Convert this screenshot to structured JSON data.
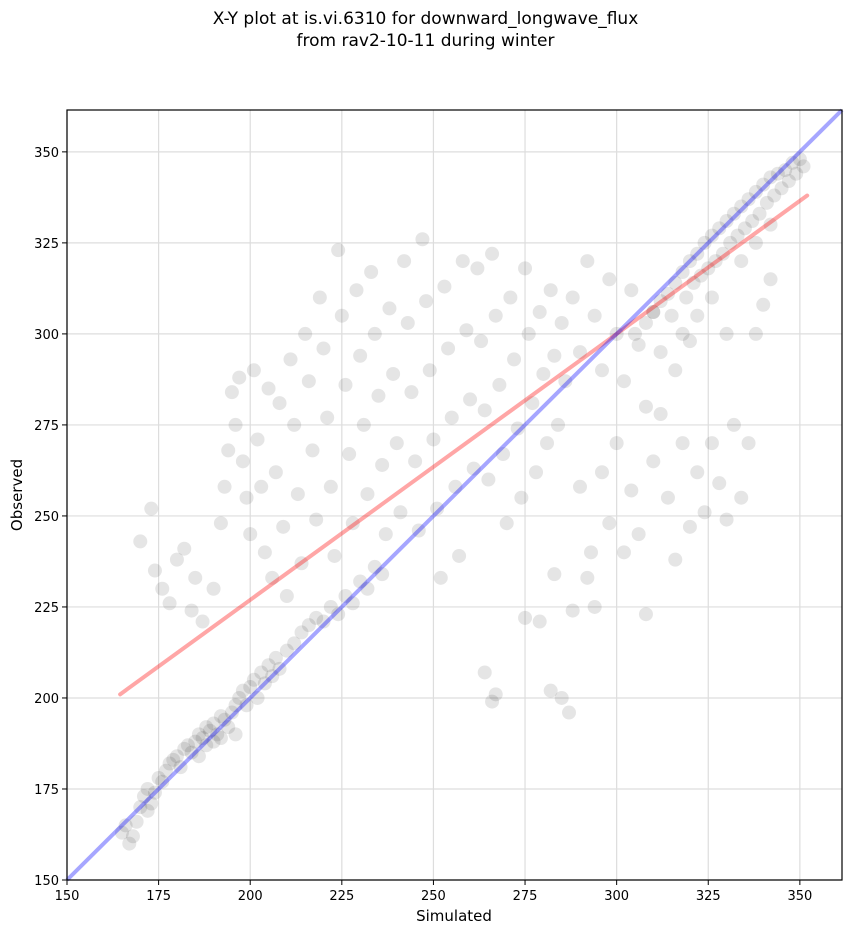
{
  "chart_data": {
    "type": "scatter",
    "title_line1": "X-Y plot at is.vi.6310 for downward_longwave_flux",
    "title_line2": "from rav2-10-11 during winter",
    "xlabel": "Simulated",
    "ylabel": "Observed",
    "xlim": [
      150,
      361.5
    ],
    "ylim": [
      150,
      361.5
    ],
    "xticks": [
      150,
      175,
      200,
      225,
      250,
      275,
      300,
      325,
      350
    ],
    "yticks": [
      150,
      175,
      200,
      225,
      250,
      275,
      300,
      325,
      350
    ],
    "grid": true,
    "point_color": "#000000",
    "one_to_one_line": {
      "color": "#0000ff",
      "from": [
        150,
        150
      ],
      "to": [
        361.5,
        361.5
      ]
    },
    "fit_line": {
      "color": "#ff0000",
      "from": [
        164.5,
        201
      ],
      "to": [
        352,
        338
      ]
    },
    "points": [
      [
        165,
        163
      ],
      [
        166,
        165
      ],
      [
        167,
        160
      ],
      [
        168,
        162
      ],
      [
        169,
        166
      ],
      [
        170,
        170
      ],
      [
        171,
        173
      ],
      [
        172,
        175
      ],
      [
        172,
        169
      ],
      [
        173,
        171
      ],
      [
        174,
        174
      ],
      [
        175,
        178
      ],
      [
        176,
        177
      ],
      [
        177,
        180
      ],
      [
        178,
        182
      ],
      [
        179,
        183
      ],
      [
        180,
        184
      ],
      [
        181,
        181
      ],
      [
        182,
        186
      ],
      [
        183,
        187
      ],
      [
        184,
        185
      ],
      [
        185,
        188
      ],
      [
        186,
        190
      ],
      [
        186,
        184
      ],
      [
        187,
        189
      ],
      [
        188,
        192
      ],
      [
        188,
        187
      ],
      [
        189,
        191
      ],
      [
        190,
        193
      ],
      [
        190,
        188
      ],
      [
        191,
        190
      ],
      [
        192,
        195
      ],
      [
        192,
        189
      ],
      [
        193,
        194
      ],
      [
        194,
        192
      ],
      [
        195,
        196
      ],
      [
        196,
        198
      ],
      [
        196,
        190
      ],
      [
        197,
        200
      ],
      [
        198,
        202
      ],
      [
        199,
        198
      ],
      [
        200,
        203
      ],
      [
        201,
        205
      ],
      [
        202,
        200
      ],
      [
        203,
        207
      ],
      [
        204,
        204
      ],
      [
        205,
        209
      ],
      [
        206,
        206
      ],
      [
        207,
        211
      ],
      [
        208,
        208
      ],
      [
        210,
        213
      ],
      [
        212,
        215
      ],
      [
        214,
        218
      ],
      [
        216,
        220
      ],
      [
        218,
        222
      ],
      [
        220,
        221
      ],
      [
        222,
        225
      ],
      [
        224,
        223
      ],
      [
        226,
        228
      ],
      [
        228,
        226
      ],
      [
        230,
        232
      ],
      [
        232,
        230
      ],
      [
        234,
        236
      ],
      [
        236,
        234
      ],
      [
        173,
        252
      ],
      [
        170,
        243
      ],
      [
        174,
        235
      ],
      [
        176,
        230
      ],
      [
        178,
        226
      ],
      [
        180,
        238
      ],
      [
        182,
        241
      ],
      [
        184,
        224
      ],
      [
        185,
        233
      ],
      [
        187,
        221
      ],
      [
        190,
        230
      ],
      [
        192,
        248
      ],
      [
        193,
        258
      ],
      [
        194,
        268
      ],
      [
        195,
        284
      ],
      [
        196,
        275
      ],
      [
        197,
        288
      ],
      [
        198,
        265
      ],
      [
        199,
        255
      ],
      [
        200,
        245
      ],
      [
        201,
        290
      ],
      [
        202,
        271
      ],
      [
        203,
        258
      ],
      [
        204,
        240
      ],
      [
        205,
        285
      ],
      [
        206,
        233
      ],
      [
        207,
        262
      ],
      [
        208,
        281
      ],
      [
        209,
        247
      ],
      [
        210,
        228
      ],
      [
        211,
        293
      ],
      [
        212,
        275
      ],
      [
        213,
        256
      ],
      [
        214,
        237
      ],
      [
        215,
        300
      ],
      [
        216,
        287
      ],
      [
        217,
        268
      ],
      [
        218,
        249
      ],
      [
        219,
        310
      ],
      [
        220,
        296
      ],
      [
        221,
        277
      ],
      [
        222,
        258
      ],
      [
        223,
        239
      ],
      [
        224,
        323
      ],
      [
        225,
        305
      ],
      [
        226,
        286
      ],
      [
        227,
        267
      ],
      [
        228,
        248
      ],
      [
        229,
        312
      ],
      [
        230,
        294
      ],
      [
        231,
        275
      ],
      [
        232,
        256
      ],
      [
        233,
        317
      ],
      [
        234,
        300
      ],
      [
        235,
        283
      ],
      [
        236,
        264
      ],
      [
        237,
        245
      ],
      [
        238,
        307
      ],
      [
        239,
        289
      ],
      [
        240,
        270
      ],
      [
        241,
        251
      ],
      [
        242,
        320
      ],
      [
        243,
        303
      ],
      [
        244,
        284
      ],
      [
        245,
        265
      ],
      [
        246,
        246
      ],
      [
        247,
        326
      ],
      [
        248,
        309
      ],
      [
        249,
        290
      ],
      [
        250,
        271
      ],
      [
        251,
        252
      ],
      [
        252,
        233
      ],
      [
        253,
        313
      ],
      [
        254,
        296
      ],
      [
        255,
        277
      ],
      [
        256,
        258
      ],
      [
        257,
        239
      ],
      [
        258,
        320
      ],
      [
        259,
        301
      ],
      [
        260,
        282
      ],
      [
        261,
        263
      ],
      [
        262,
        318
      ],
      [
        263,
        298
      ],
      [
        264,
        279
      ],
      [
        265,
        260
      ],
      [
        266,
        322
      ],
      [
        267,
        305
      ],
      [
        268,
        286
      ],
      [
        269,
        267
      ],
      [
        270,
        248
      ],
      [
        271,
        310
      ],
      [
        272,
        293
      ],
      [
        273,
        274
      ],
      [
        274,
        255
      ],
      [
        275,
        318
      ],
      [
        276,
        300
      ],
      [
        277,
        281
      ],
      [
        278,
        262
      ],
      [
        279,
        306
      ],
      [
        280,
        289
      ],
      [
        281,
        270
      ],
      [
        282,
        312
      ],
      [
        283,
        294
      ],
      [
        284,
        275
      ],
      [
        285,
        303
      ],
      [
        286,
        287
      ],
      [
        288,
        310
      ],
      [
        290,
        295
      ],
      [
        292,
        320
      ],
      [
        294,
        305
      ],
      [
        296,
        290
      ],
      [
        298,
        315
      ],
      [
        300,
        300
      ],
      [
        302,
        287
      ],
      [
        304,
        312
      ],
      [
        306,
        297
      ],
      [
        308,
        280
      ],
      [
        310,
        306
      ],
      [
        264,
        207
      ],
      [
        266,
        199
      ],
      [
        267,
        201
      ],
      [
        275,
        222
      ],
      [
        279,
        221
      ],
      [
        282,
        202
      ],
      [
        285,
        200
      ],
      [
        287,
        196
      ],
      [
        288,
        224
      ],
      [
        292,
        233
      ],
      [
        294,
        225
      ],
      [
        283,
        234
      ],
      [
        290,
        258
      ],
      [
        293,
        240
      ],
      [
        296,
        262
      ],
      [
        298,
        248
      ],
      [
        300,
        270
      ],
      [
        302,
        240
      ],
      [
        304,
        257
      ],
      [
        306,
        245
      ],
      [
        308,
        223
      ],
      [
        310,
        265
      ],
      [
        312,
        278
      ],
      [
        314,
        255
      ],
      [
        316,
        238
      ],
      [
        318,
        270
      ],
      [
        320,
        247
      ],
      [
        322,
        262
      ],
      [
        324,
        251
      ],
      [
        326,
        270
      ],
      [
        328,
        259
      ],
      [
        330,
        249
      ],
      [
        332,
        275
      ],
      [
        334,
        255
      ],
      [
        336,
        270
      ],
      [
        338,
        300
      ],
      [
        340,
        308
      ],
      [
        342,
        315
      ],
      [
        305,
        300
      ],
      [
        308,
        303
      ],
      [
        310,
        306
      ],
      [
        312,
        309
      ],
      [
        314,
        311
      ],
      [
        315,
        305
      ],
      [
        316,
        314
      ],
      [
        318,
        317
      ],
      [
        319,
        310
      ],
      [
        320,
        320
      ],
      [
        321,
        314
      ],
      [
        322,
        322
      ],
      [
        323,
        316
      ],
      [
        324,
        325
      ],
      [
        325,
        318
      ],
      [
        326,
        327
      ],
      [
        327,
        320
      ],
      [
        328,
        329
      ],
      [
        329,
        322
      ],
      [
        330,
        331
      ],
      [
        331,
        325
      ],
      [
        332,
        333
      ],
      [
        333,
        327
      ],
      [
        334,
        335
      ],
      [
        335,
        329
      ],
      [
        336,
        337
      ],
      [
        337,
        331
      ],
      [
        338,
        339
      ],
      [
        339,
        333
      ],
      [
        340,
        341
      ],
      [
        341,
        336
      ],
      [
        342,
        343
      ],
      [
        343,
        338
      ],
      [
        344,
        344
      ],
      [
        345,
        340
      ],
      [
        346,
        345
      ],
      [
        347,
        342
      ],
      [
        348,
        347
      ],
      [
        349,
        344
      ],
      [
        350,
        348
      ],
      [
        351,
        346
      ],
      [
        318,
        300
      ],
      [
        322,
        305
      ],
      [
        326,
        310
      ],
      [
        330,
        300
      ],
      [
        334,
        320
      ],
      [
        338,
        325
      ],
      [
        342,
        330
      ],
      [
        312,
        295
      ],
      [
        316,
        290
      ],
      [
        320,
        298
      ]
    ]
  }
}
